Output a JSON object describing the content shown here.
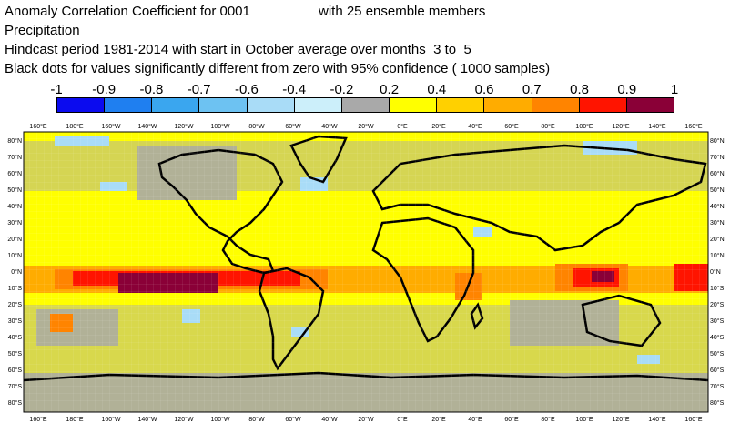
{
  "title": {
    "line1_a": "Anomaly Correlation Coefficient for 0001",
    "line1_b": "with 25 ensemble members",
    "line2": "Precipitation",
    "line3": "Hindcast period 1981-2014 with start in October average over months  3 to  5",
    "line4": "Black dots for values significantly different from zero with 95% confidence ( 1000 samples)"
  },
  "colorbar": {
    "labels": [
      "-1",
      "-0.9",
      "-0.8",
      "-0.7",
      "-0.6",
      "-0.4",
      "-0.2",
      "0.2",
      "0.4",
      "0.6",
      "0.7",
      "0.8",
      "0.9",
      "1"
    ],
    "colors": [
      "#0b0bef",
      "#1f7ff0",
      "#3aa6ef",
      "#6dc2f2",
      "#a9dcf7",
      "#cceffa",
      "#a9a9a9",
      "#ffff00",
      "#ffd000",
      "#ffac00",
      "#ff8400",
      "#ff1400",
      "#8a0037"
    ]
  },
  "map": {
    "lon_labels_top": [
      "160°E",
      "180°E",
      "160°W",
      "140°W",
      "120°W",
      "100°W",
      "80°W",
      "60°W",
      "40°W",
      "20°W",
      "0°E",
      "20°E",
      "40°E",
      "60°E",
      "80°E",
      "100°E",
      "120°E",
      "140°E",
      "160°E"
    ],
    "lon_labels_bottom": [
      "160°E",
      "180°E",
      "160°W",
      "140°W",
      "120°W",
      "100°W",
      "80°W",
      "60°W",
      "40°W",
      "20°W",
      "0°E",
      "20°E",
      "40°E",
      "60°E",
      "80°E",
      "100°E",
      "120°E",
      "140°E",
      "160°E"
    ],
    "lat_labels": [
      "80°N",
      "70°N",
      "60°N",
      "50°N",
      "40°N",
      "30°N",
      "20°N",
      "10°N",
      "0°N",
      "10°S",
      "20°S",
      "30°S",
      "40°S",
      "50°S",
      "60°S",
      "70°S",
      "80°S"
    ]
  }
}
